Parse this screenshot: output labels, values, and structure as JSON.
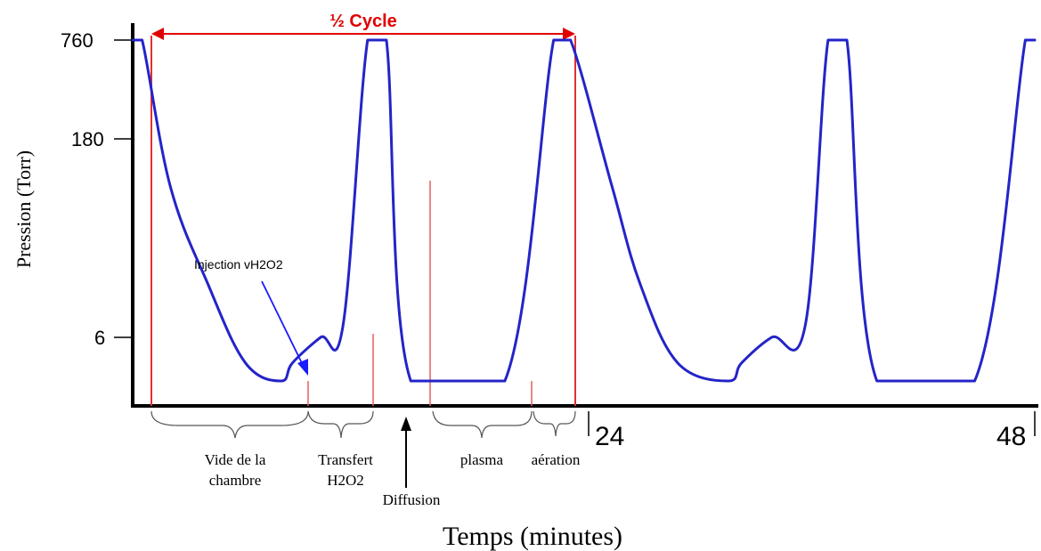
{
  "chart_data": {
    "type": "line",
    "title": "",
    "xlabel": "Temps (minutes)",
    "ylabel": "Pression (Torr)",
    "x_ticks": [
      "24",
      "48"
    ],
    "y_ticks": [
      "6",
      "180",
      "760"
    ],
    "y_scale": "non-linear (schematic)",
    "series": [
      {
        "color": "#2424c8",
        "points": [
          [
            0,
            760
          ],
          [
            0.5,
            760
          ],
          [
            2,
            80
          ],
          [
            4,
            15
          ],
          [
            6,
            4
          ],
          [
            7.9,
            3
          ],
          [
            8.5,
            4
          ],
          [
            10,
            6
          ],
          [
            11.2,
            7.5
          ],
          [
            12.5,
            760
          ],
          [
            13.5,
            760
          ],
          [
            14.8,
            3
          ],
          [
            19.8,
            3
          ],
          [
            22.4,
            760
          ],
          [
            23.3,
            760
          ],
          [
            25.5,
            80
          ],
          [
            27,
            15
          ],
          [
            29,
            4
          ],
          [
            31.7,
            3
          ],
          [
            32.4,
            4
          ],
          [
            34,
            6
          ],
          [
            35.8,
            7.5
          ],
          [
            37,
            760
          ],
          [
            38,
            760
          ],
          [
            39.6,
            3
          ],
          [
            44.8,
            3
          ],
          [
            47.5,
            760
          ],
          [
            48,
            760
          ]
        ]
      }
    ],
    "annotations": {
      "half_cycle": "½ Cycle",
      "injection": "Injection vH2O2",
      "arrow_label": "Diffusion"
    },
    "phases": [
      {
        "line1": "Vide de la",
        "line2": "chambre"
      },
      {
        "line1": "Transfert",
        "line2": "H2O2"
      },
      {
        "line1": "plasma",
        "line2": ""
      },
      {
        "line1": "aération",
        "line2": ""
      }
    ],
    "grid": false,
    "legend": "none",
    "colors": {
      "curve": "#2424c8",
      "markers": "#e03030",
      "cycle_arrow": "#e00000",
      "axes": "#000000"
    }
  }
}
